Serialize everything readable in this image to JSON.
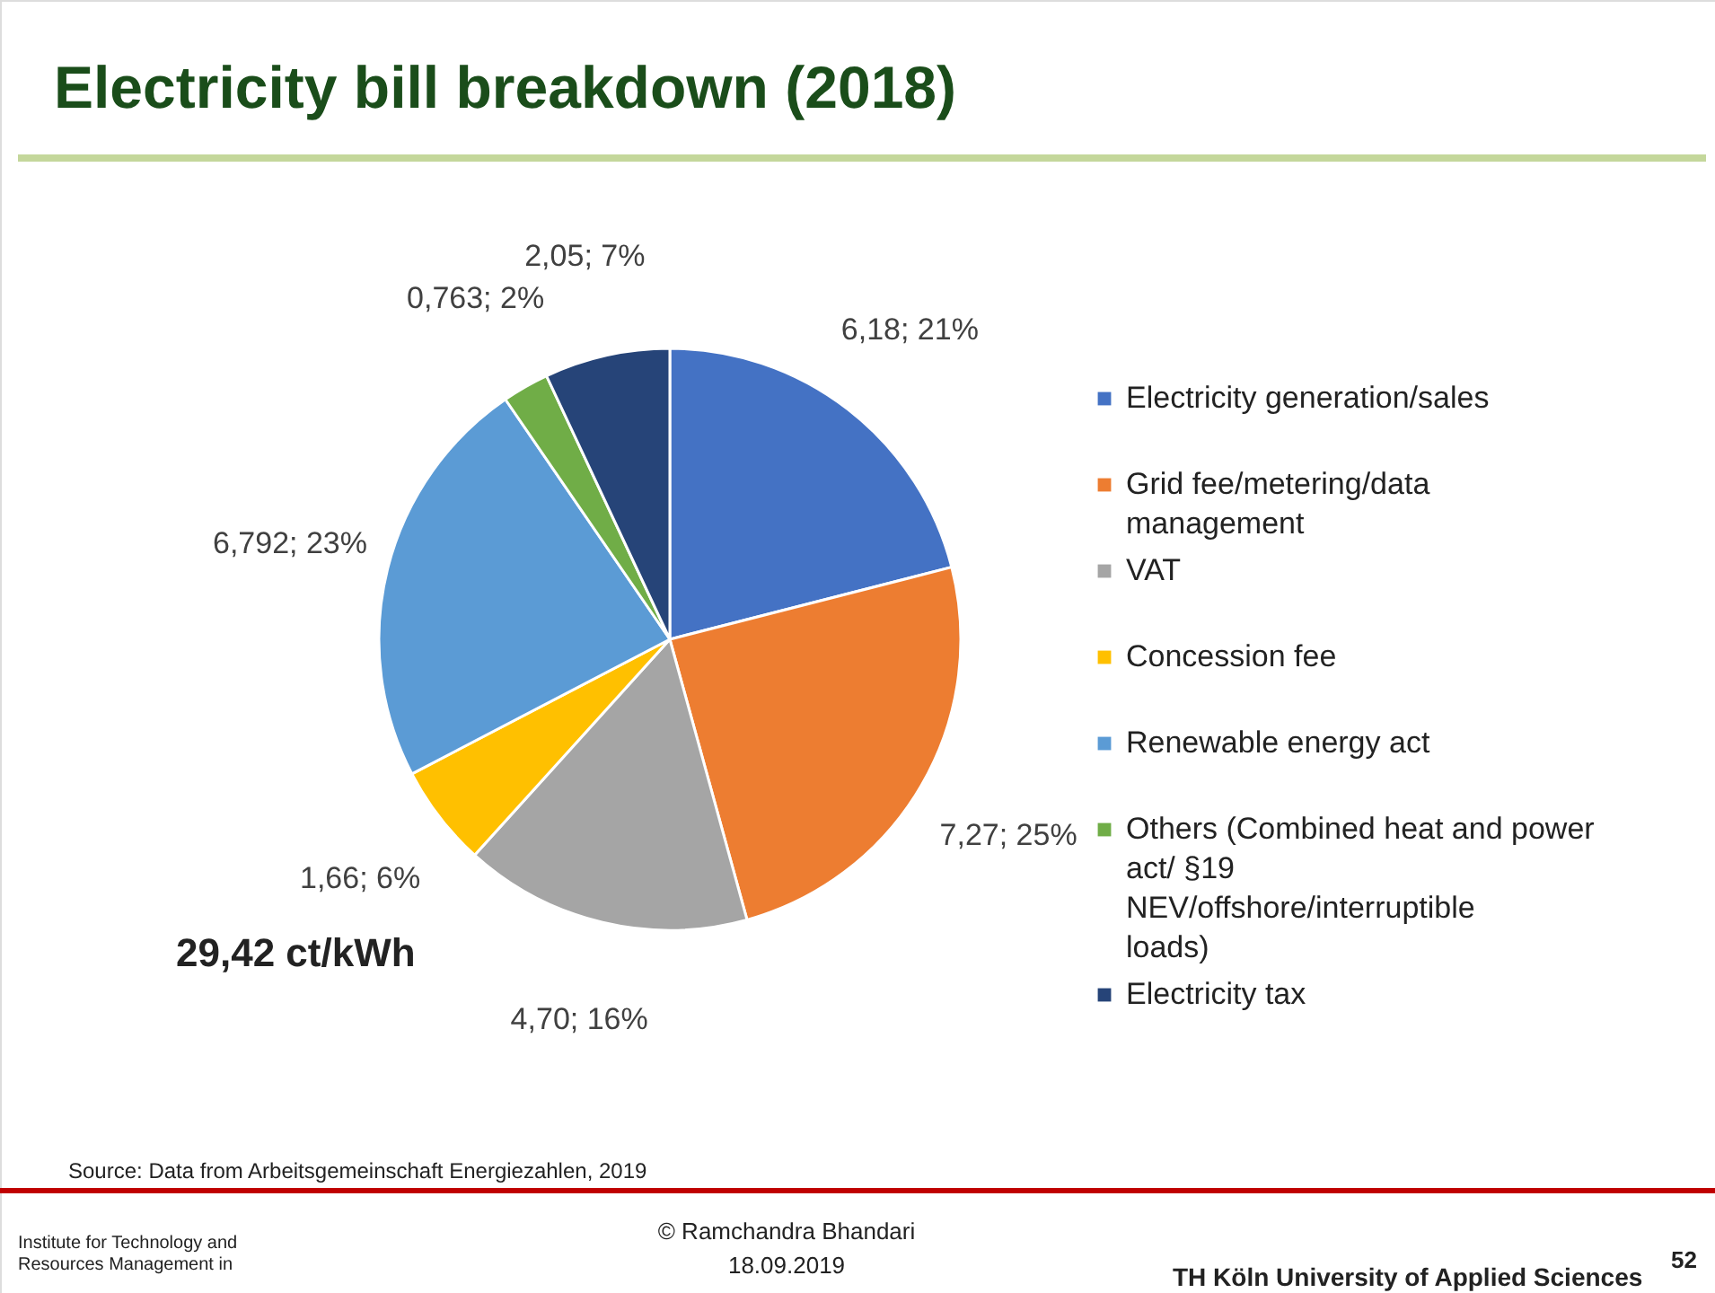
{
  "chart_data": {
    "type": "pie",
    "title": "Electricity bill breakdown (2018)",
    "categories": [
      "Electricity generation/sales",
      "Grid fee/metering/data management",
      "VAT",
      "Concession fee",
      "Renewable energy act",
      "Others (Combined heat and power act/ §19 NEV/offshore/interruptible loads)",
      "Electricity tax"
    ],
    "values": [
      6.18,
      7.27,
      4.7,
      1.66,
      6.792,
      0.763,
      2.05
    ],
    "value_labels": [
      "6,18; 21%",
      "7,27; 25%",
      "4,70; 16%",
      "1,66; 6%",
      "6,792; 23%",
      "0,763; 2%",
      "2,05; 7%"
    ],
    "colors": [
      "#4472c4",
      "#ed7d31",
      "#a5a5a5",
      "#ffc000",
      "#5b9bd5",
      "#70ad47",
      "#264478"
    ],
    "legend": "right",
    "annotations": [
      "29,42 ct/kWh",
      "Source: Data from Arbeitsgemeinschaft Energiezahlen, 2019",
      "Institute for Technology and Resources Management in",
      "© Ramchandra Bhandari",
      "18.09.2019",
      "TH Köln University of Applied Sciences",
      "52"
    ]
  }
}
